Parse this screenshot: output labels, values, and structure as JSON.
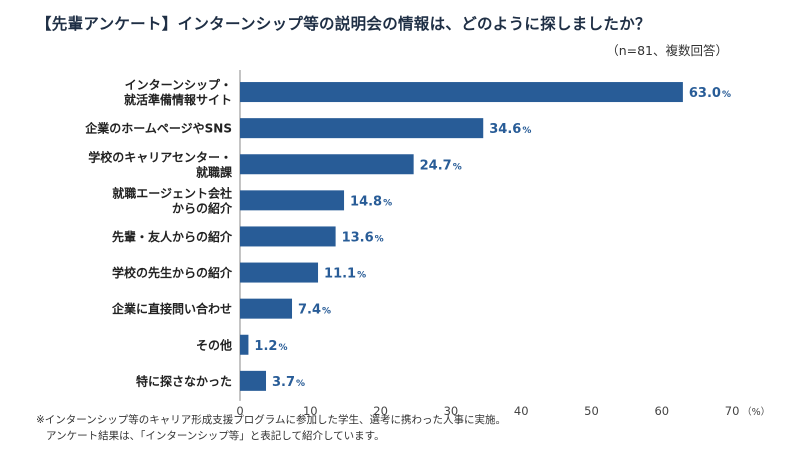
{
  "title": "【先輩アンケート】インターンシップ等の説明会の情報は、どのように探しましたか？",
  "subtitle": "（n=81、複数回答）",
  "notes": [
    "※インターンシップ等のキャリア形成支援プログラムに参加した学生、選考に携わった人事に実施。",
    "アンケート結果は、「インターンシップ等」と表記して紹介しています。"
  ],
  "colors": {
    "bar": "#285c97",
    "label": "#285c97",
    "axis": "#888888"
  },
  "chart_data": {
    "type": "bar",
    "orientation": "horizontal",
    "categories": [
      [
        "インターンシップ・",
        "就活準備情報サイト"
      ],
      [
        "企業のホームページやSNS"
      ],
      [
        "学校のキャリアセンター・",
        "就職課"
      ],
      [
        "就職エージェント会社",
        "からの紹介"
      ],
      [
        "先輩・友人からの紹介"
      ],
      [
        "学校の先生からの紹介"
      ],
      [
        "企業に直接問い合わせ"
      ],
      [
        "その他"
      ],
      [
        "特に探さなかった"
      ]
    ],
    "values": [
      63.0,
      34.6,
      24.7,
      14.8,
      13.6,
      11.1,
      7.4,
      1.2,
      3.7
    ],
    "value_labels": [
      "63.0",
      "34.6",
      "24.7",
      "14.8",
      "13.6",
      "11.1",
      "7.4",
      "1.2",
      "3.7"
    ],
    "value_unit": "%",
    "xlim": [
      0,
      70
    ],
    "xticks": [
      "0",
      "10",
      "20",
      "30",
      "40",
      "50",
      "60",
      "70"
    ],
    "xunit": "（%）",
    "grid": false
  }
}
